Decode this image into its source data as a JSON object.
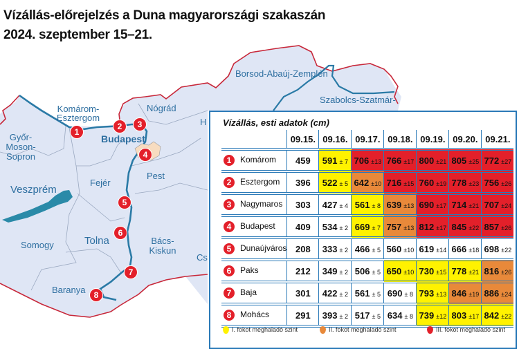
{
  "title_line1": "Vízállás-előrejelzés a Duna magyarországi szakaszán",
  "title_line2": "2024. szeptember 15–21.",
  "map": {
    "counties": [
      "Borsod-Abaúj-Zemplén",
      "Szabolcs-Szatmár-",
      "Komárom-Esztergom",
      "Nógrád",
      "Győr-Moson-Sopron",
      "Budapest",
      "Pest",
      "Veszprém",
      "Fejér",
      "Somogy",
      "Tolna",
      "Bács-Kiskun",
      "Baranya",
      "H",
      "Cs"
    ],
    "colors": {
      "land": "#dfe6f5",
      "river": "#2a7aa6",
      "border": "#c8283a",
      "marker": "#e3202a",
      "budapest": "#f7dcc0"
    }
  },
  "table": {
    "title": "Vízállás, esti adatok (cm)",
    "dates": [
      "09.15.",
      "09.16.",
      "09.17.",
      "09.18.",
      "09.19.",
      "09.20.",
      "09.21."
    ],
    "level_colors": {
      "0": "#ffffff",
      "1": "#fff200",
      "2": "#e8893a",
      "3": "#e3202a"
    },
    "rows": [
      {
        "num": "1",
        "name": "Komárom",
        "cells": [
          {
            "v": "459",
            "l": 0
          },
          {
            "v": "591",
            "pm": "± 7",
            "l": 1
          },
          {
            "v": "706",
            "pm": "±13",
            "l": 3
          },
          {
            "v": "766",
            "pm": "±17",
            "l": 3
          },
          {
            "v": "800",
            "pm": "±21",
            "l": 3
          },
          {
            "v": "805",
            "pm": "±25",
            "l": 3
          },
          {
            "v": "772",
            "pm": "±27",
            "l": 3
          }
        ]
      },
      {
        "num": "2",
        "name": "Esztergom",
        "cells": [
          {
            "v": "396",
            "l": 0
          },
          {
            "v": "522",
            "pm": "± 5",
            "l": 1
          },
          {
            "v": "642",
            "pm": "±10",
            "l": 2
          },
          {
            "v": "716",
            "pm": "±15",
            "l": 3
          },
          {
            "v": "760",
            "pm": "±19",
            "l": 3
          },
          {
            "v": "778",
            "pm": "±23",
            "l": 3
          },
          {
            "v": "756",
            "pm": "±26",
            "l": 3
          }
        ]
      },
      {
        "num": "3",
        "name": "Nagymaros",
        "cells": [
          {
            "v": "303",
            "l": 0
          },
          {
            "v": "427",
            "pm": "± 4",
            "l": 0
          },
          {
            "v": "561",
            "pm": "± 8",
            "l": 1
          },
          {
            "v": "639",
            "pm": "±13",
            "l": 2
          },
          {
            "v": "690",
            "pm": "±17",
            "l": 3
          },
          {
            "v": "714",
            "pm": "±21",
            "l": 3
          },
          {
            "v": "707",
            "pm": "±24",
            "l": 3
          }
        ]
      },
      {
        "num": "4",
        "name": "Budapest",
        "cells": [
          {
            "v": "409",
            "l": 0
          },
          {
            "v": "534",
            "pm": "± 2",
            "l": 0
          },
          {
            "v": "669",
            "pm": "± 7",
            "l": 1
          },
          {
            "v": "757",
            "pm": "±13",
            "l": 2
          },
          {
            "v": "812",
            "pm": "±17",
            "l": 3
          },
          {
            "v": "845",
            "pm": "±22",
            "l": 3
          },
          {
            "v": "857",
            "pm": "±26",
            "l": 3
          }
        ]
      },
      {
        "num": "5",
        "name": "Dunaújváros",
        "cells": [
          {
            "v": "208",
            "l": 0
          },
          {
            "v": "333",
            "pm": "± 2",
            "l": 0
          },
          {
            "v": "466",
            "pm": "± 5",
            "l": 0
          },
          {
            "v": "560",
            "pm": "±10",
            "l": 0
          },
          {
            "v": "619",
            "pm": "±14",
            "l": 0
          },
          {
            "v": "666",
            "pm": "±18",
            "l": 0
          },
          {
            "v": "698",
            "pm": "±22",
            "l": 0
          }
        ]
      },
      {
        "num": "6",
        "name": "Paks",
        "cells": [
          {
            "v": "212",
            "l": 0
          },
          {
            "v": "349",
            "pm": "± 2",
            "l": 0
          },
          {
            "v": "506",
            "pm": "± 5",
            "l": 0
          },
          {
            "v": "650",
            "pm": "±10",
            "l": 1
          },
          {
            "v": "730",
            "pm": "±15",
            "l": 1
          },
          {
            "v": "778",
            "pm": "±21",
            "l": 1
          },
          {
            "v": "816",
            "pm": "±26",
            "l": 2
          }
        ]
      },
      {
        "num": "7",
        "name": "Baja",
        "cells": [
          {
            "v": "301",
            "l": 0
          },
          {
            "v": "422",
            "pm": "± 2",
            "l": 0
          },
          {
            "v": "561",
            "pm": "± 5",
            "l": 0
          },
          {
            "v": "690",
            "pm": "± 8",
            "l": 0
          },
          {
            "v": "793",
            "pm": "±13",
            "l": 1
          },
          {
            "v": "846",
            "pm": "±19",
            "l": 2
          },
          {
            "v": "886",
            "pm": "±24",
            "l": 2
          }
        ]
      },
      {
        "num": "8",
        "name": "Mohács",
        "cells": [
          {
            "v": "291",
            "l": 0
          },
          {
            "v": "393",
            "pm": "± 2",
            "l": 0
          },
          {
            "v": "517",
            "pm": "± 5",
            "l": 0
          },
          {
            "v": "634",
            "pm": "± 8",
            "l": 0
          },
          {
            "v": "739",
            "pm": "±12",
            "l": 1
          },
          {
            "v": "803",
            "pm": "±17",
            "l": 1
          },
          {
            "v": "842",
            "pm": "±22",
            "l": 1
          }
        ]
      }
    ],
    "legend": [
      {
        "label": "I. fokot meghaladó szint",
        "color": "#fff200"
      },
      {
        "label": "II. fokot meghaladó szint",
        "color": "#e8893a"
      },
      {
        "label": "III. fokot meghaladó szint",
        "color": "#e3202a"
      }
    ]
  }
}
